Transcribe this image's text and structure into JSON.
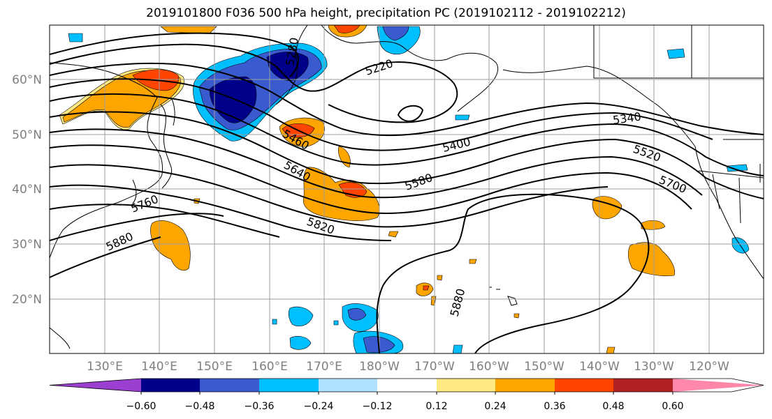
{
  "title": "2019101800 F036 500 hPa height, precipitation PC (2019102112 - 2019102212)",
  "lat_labels": [
    "60°N",
    "50°N",
    "40°N",
    "30°N",
    "20°N"
  ],
  "lon_labels": [
    "130°E",
    "140°E",
    "150°E",
    "160°E",
    "170°E",
    "180°W",
    "170°W",
    "160°W",
    "150°W",
    "140°W",
    "130°W",
    "120°W"
  ],
  "contour_labels": [
    "5280",
    "5220",
    "5340",
    "5460",
    "5400",
    "5520",
    "5640",
    "5580",
    "5700",
    "5760",
    "5820",
    "5880",
    "5880"
  ],
  "colorbar": {
    "ticks": [
      "−0.60",
      "−0.48",
      "−0.36",
      "−0.24",
      "−0.12",
      "0.12",
      "0.24",
      "0.36",
      "0.48",
      "0.60"
    ],
    "colors": [
      "#9b3fd1",
      "#00008b",
      "#3a5bd0",
      "#00bfff",
      "#b0e2ff",
      "#ffffff",
      "#ffe980",
      "#ffa500",
      "#ff4500",
      "#b22222",
      "#ff88aa"
    ]
  },
  "shading_colors": {
    "neg_strong": "#00008b",
    "neg_mid": "#3a5bd0",
    "neg_light": "#00bfff",
    "neg_pale": "#b0e2ff",
    "pos_pale": "#ffe980",
    "pos_light": "#ffa500",
    "pos_mid": "#ff4500"
  }
}
